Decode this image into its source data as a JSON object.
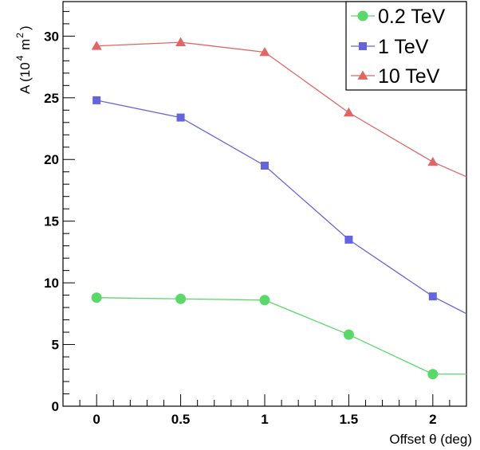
{
  "chart_data": {
    "type": "line",
    "xlabel": "Offset θ (deg)",
    "ylabel_main": "A (10",
    "ylabel_sup1": "4",
    "ylabel_mid": " m",
    "ylabel_sup2": "2",
    "ylabel_end": ")",
    "xlim": [
      -0.2,
      2.2
    ],
    "ylim": [
      0,
      32.8
    ],
    "x_ticks": [
      0,
      0.5,
      1,
      1.5,
      2
    ],
    "x_tick_labels": [
      "0",
      "0.5",
      "1",
      "1.5",
      "2"
    ],
    "y_ticks": [
      0,
      5,
      10,
      15,
      20,
      25,
      30
    ],
    "y_tick_labels": [
      "0",
      "5",
      "10",
      "15",
      "20",
      "25",
      "30"
    ],
    "legend_position": "top-right",
    "grid": false,
    "series": [
      {
        "name": "0.2 TeV",
        "color": "#5ad86a",
        "marker": "circle",
        "x": [
          0,
          0.5,
          1,
          1.5,
          2
        ],
        "values": [
          8.8,
          8.7,
          8.6,
          5.8,
          2.6
        ],
        "line_end": [
          2.2,
          2.6
        ]
      },
      {
        "name": "1 TeV",
        "color": "#6464dc",
        "marker": "square",
        "x": [
          0,
          0.5,
          1,
          1.5,
          2
        ],
        "values": [
          24.8,
          23.4,
          19.5,
          13.5,
          8.9
        ],
        "line_end": [
          2.2,
          7.5
        ]
      },
      {
        "name": "10 TeV",
        "color": "#e06666",
        "marker": "triangle",
        "x": [
          0,
          0.5,
          1,
          1.5,
          2
        ],
        "values": [
          29.2,
          29.5,
          28.7,
          23.8,
          19.8
        ],
        "line_end": [
          2.2,
          18.6
        ]
      }
    ]
  }
}
